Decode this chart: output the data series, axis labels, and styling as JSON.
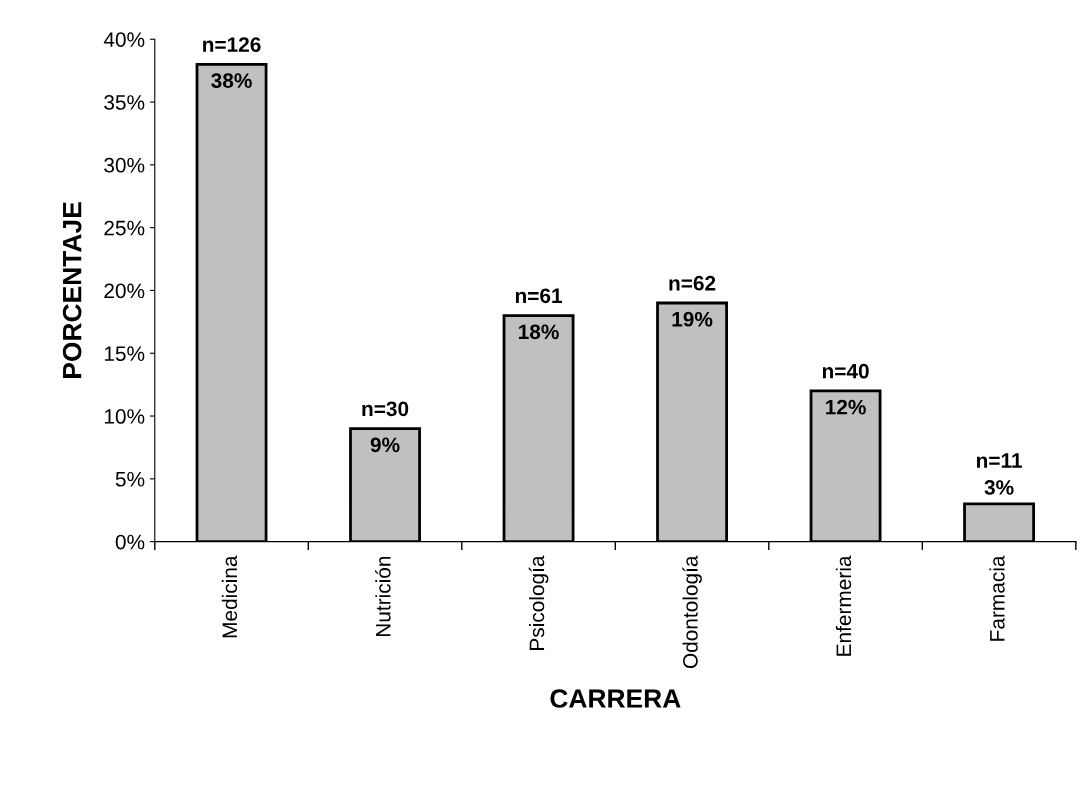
{
  "chart_data": {
    "type": "bar",
    "xlabel": "CARRERA",
    "ylabel": "PORCENTAJE",
    "categories": [
      "Medicina",
      "Nutrición",
      "Psicología",
      "Odontología",
      "Enfermeria",
      "Farmacia"
    ],
    "values": [
      38,
      9,
      18,
      19,
      12,
      3
    ],
    "value_labels": [
      "n=126\n38%",
      "n=30\n9%",
      "n=61\n18%",
      "n=62\n19%",
      "n=40\n12%",
      "n=11\n3%"
    ],
    "color": "#c0c0c0",
    "ylim": [
      0,
      40
    ],
    "yticks": [
      {
        "value": 0,
        "label": "0%"
      },
      {
        "value": 5,
        "label": "5%"
      },
      {
        "value": 10,
        "label": "10%"
      },
      {
        "value": 15,
        "label": "15%"
      },
      {
        "value": 20,
        "label": "20%"
      },
      {
        "value": 25,
        "label": "25%"
      },
      {
        "value": 30,
        "label": "30%"
      },
      {
        "value": 35,
        "label": "35%"
      },
      {
        "value": 40,
        "label": "40%"
      }
    ],
    "grid": false,
    "legend": false
  }
}
